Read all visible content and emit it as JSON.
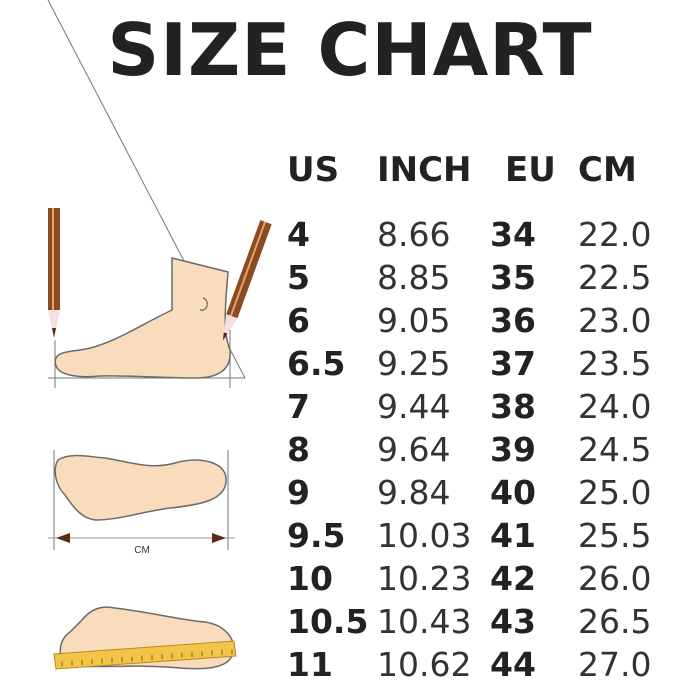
{
  "title": "SIZE CHART",
  "headers": [
    "US",
    "INCH",
    "EU",
    "CM"
  ],
  "rows": [
    [
      "4",
      "8.66",
      "34",
      "22.0"
    ],
    [
      "5",
      "8.85",
      "35",
      "22.5"
    ],
    [
      "6",
      "9.05",
      "36",
      "23.0"
    ],
    [
      "6.5",
      "9.25",
      "37",
      "23.5"
    ],
    [
      "7",
      "9.44",
      "38",
      "24.0"
    ],
    [
      "8",
      "9.64",
      "39",
      "24.5"
    ],
    [
      "9",
      "9.84",
      "40",
      "25.0"
    ],
    [
      "9.5",
      "10.03",
      "41",
      "25.5"
    ],
    [
      "10",
      "10.23",
      "42",
      "26.0"
    ],
    [
      "10.5",
      "10.43",
      "43",
      "26.5"
    ],
    [
      "11",
      "10.62",
      "44",
      "27.0"
    ]
  ],
  "illustration": {
    "measure_label": "CM"
  },
  "colors": {
    "skin": "#f8dcbc",
    "outline": "#6b6b6b",
    "pencil": "#8a4a22",
    "ruler": "#f3c44a"
  }
}
